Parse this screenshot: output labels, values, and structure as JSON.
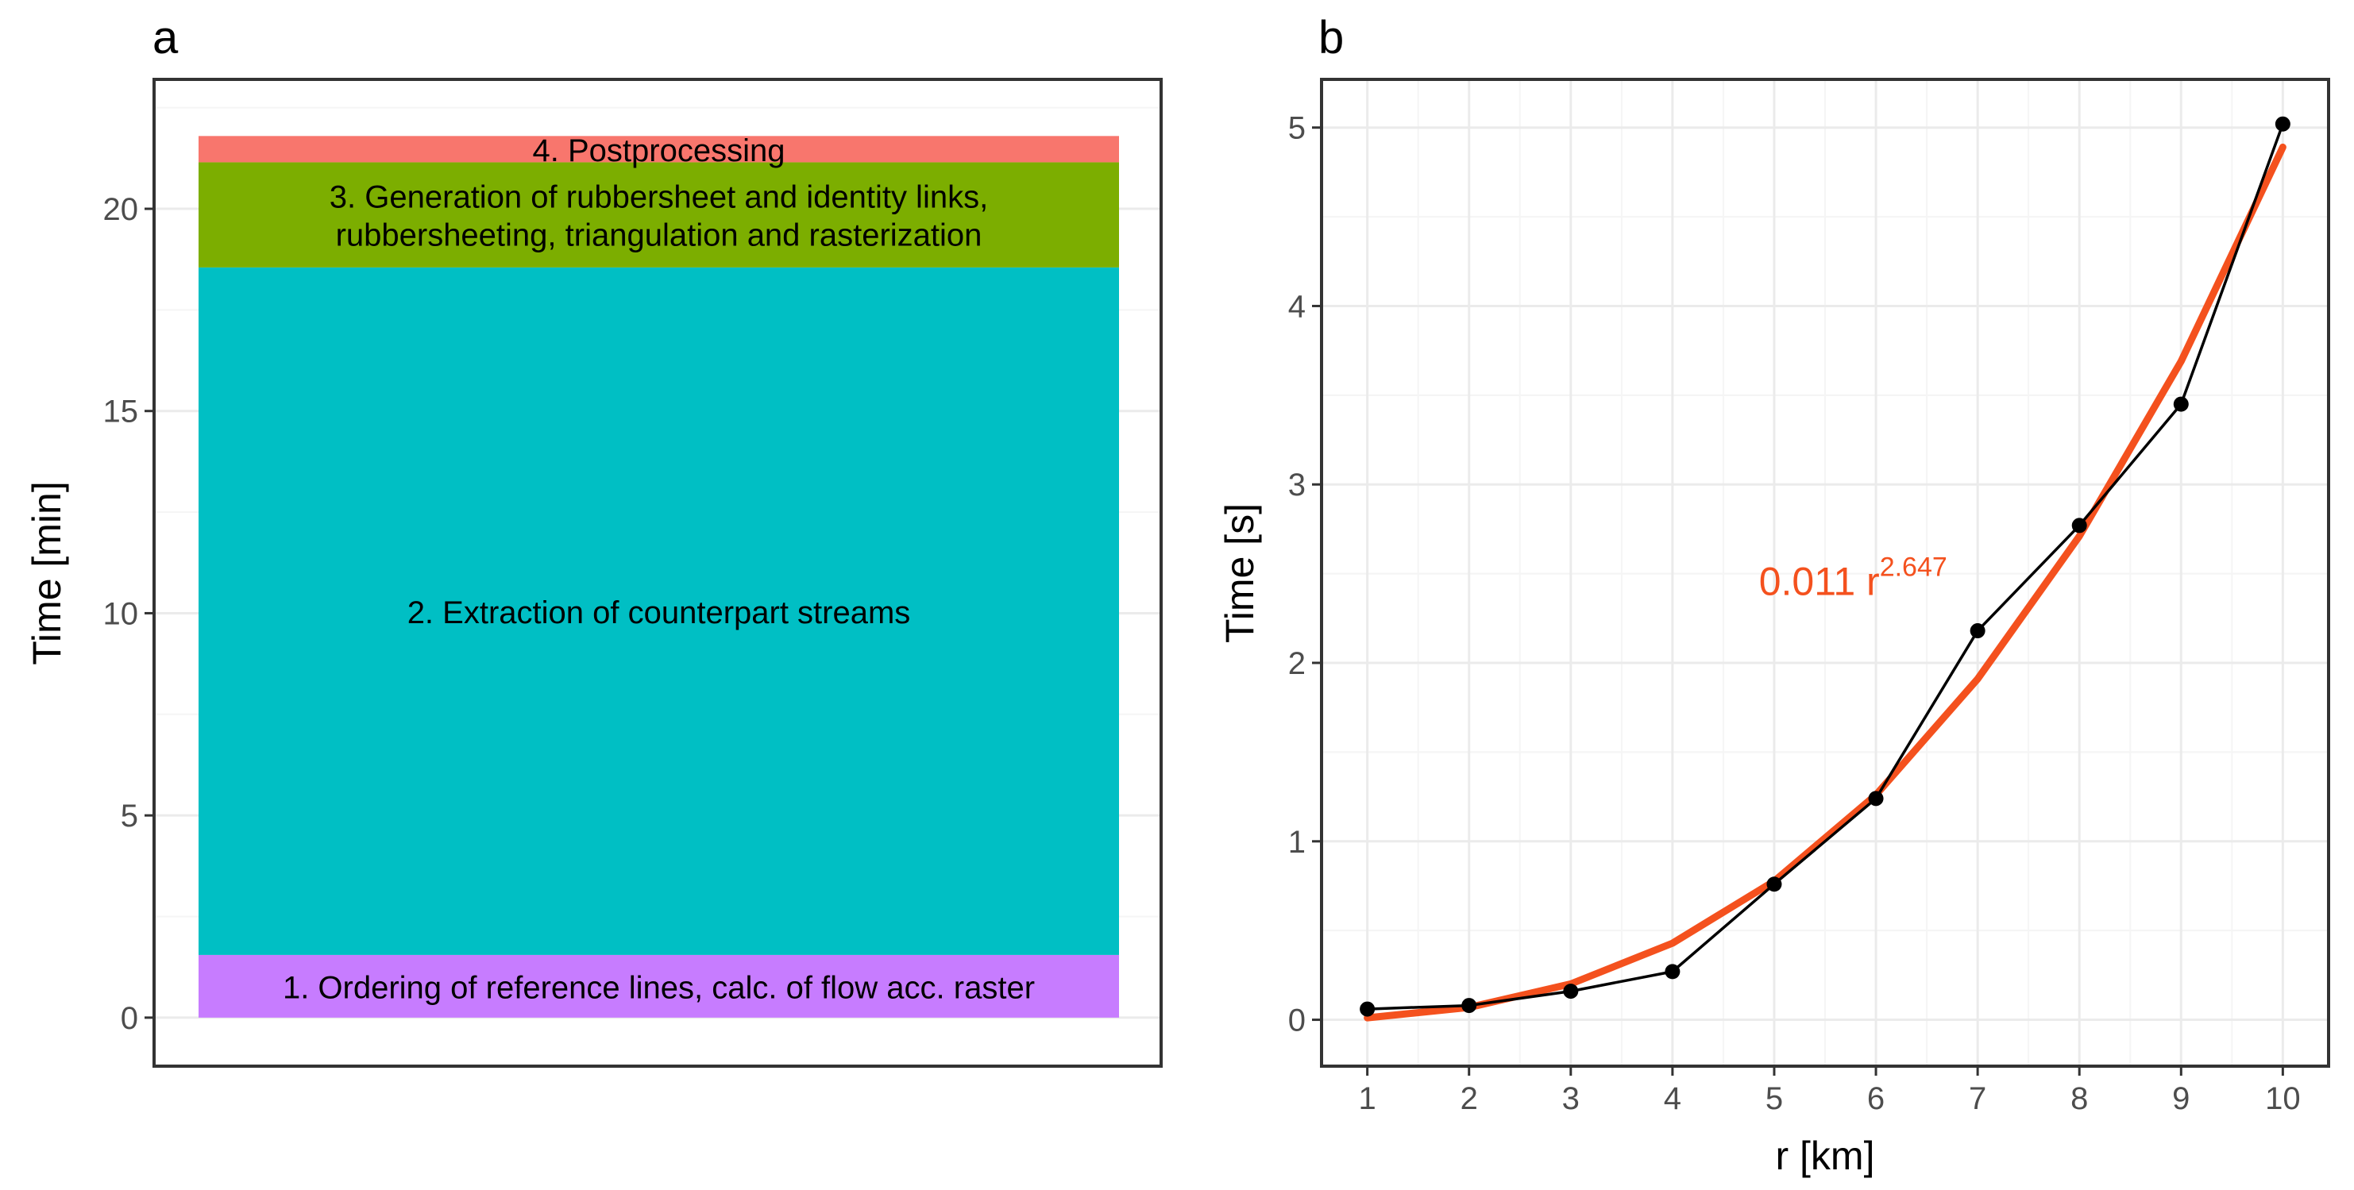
{
  "panels": {
    "a_label": "a",
    "b_label": "b"
  },
  "colors": {
    "postprocessing": "#F8766D",
    "generation": "#7CAE00",
    "extraction": "#00BFC4",
    "ordering": "#C77CFF",
    "fit": "#F4511E",
    "points": "#000000",
    "grid_major": "#EBEBEB",
    "grid_minor": "#F5F5F5",
    "frame": "#333333",
    "tick_text": "#4D4D4D"
  },
  "chart_data": [
    {
      "panel": "a",
      "type": "bar",
      "stacked": true,
      "title": "",
      "xlabel": "",
      "ylabel": "Time [min]",
      "ylim": [
        -1.2,
        23.2
      ],
      "yticks": [
        0,
        5,
        10,
        15,
        20
      ],
      "ytick_labels": [
        "0",
        "5",
        "10",
        "15",
        "20"
      ],
      "grid": true,
      "legend": "none",
      "segments": [
        {
          "label_lines": [
            "1. Ordering of reference lines, calc. of flow acc. raster"
          ],
          "value": 1.55,
          "color": "#C77CFF"
        },
        {
          "label_lines": [
            "2. Extraction of counterpart streams"
          ],
          "value": 17.0,
          "color": "#00BFC4"
        },
        {
          "label_lines": [
            "3. Generation of rubbersheet and identity links,",
            "rubbersheeting, triangulation and rasterization"
          ],
          "value": 2.6,
          "color": "#7CAE00"
        },
        {
          "label_lines": [
            "4. Postprocessing"
          ],
          "value": 0.65,
          "color": "#F8766D"
        }
      ]
    },
    {
      "panel": "b",
      "type": "line",
      "title": "",
      "xlabel": "r [km]",
      "ylabel": "Time [s]",
      "xlim": [
        0.55,
        10.45
      ],
      "ylim": [
        -0.26,
        5.27
      ],
      "xticks": [
        1,
        2,
        3,
        4,
        5,
        6,
        7,
        8,
        9,
        10
      ],
      "xtick_labels": [
        "1",
        "2",
        "3",
        "4",
        "5",
        "6",
        "7",
        "8",
        "9",
        "10"
      ],
      "yticks": [
        0,
        1,
        2,
        3,
        4,
        5
      ],
      "ytick_labels": [
        "0",
        "1",
        "2",
        "3",
        "4",
        "5"
      ],
      "grid": true,
      "legend": "none",
      "annotation": {
        "text": "0.011 r",
        "superscript": "2.647",
        "x": 4.85,
        "y": 2.38
      },
      "series": [
        {
          "kind": "measured",
          "x": [
            1,
            2,
            3,
            4,
            5,
            6,
            7,
            8,
            9,
            10
          ],
          "y": [
            0.06,
            0.08,
            0.16,
            0.27,
            0.76,
            1.24,
            2.18,
            2.77,
            3.45,
            5.02
          ],
          "color": "#000000",
          "markers": true
        },
        {
          "kind": "fit",
          "coef": 0.011,
          "exponent": 2.647,
          "x": [
            1,
            2,
            3,
            4,
            5,
            6,
            7,
            8,
            9,
            10
          ],
          "y": [
            0.011,
            0.069,
            0.201,
            0.429,
            0.777,
            1.26,
            1.91,
            2.71,
            3.69,
            4.89
          ],
          "color": "#F4511E",
          "markers": false
        }
      ]
    }
  ]
}
